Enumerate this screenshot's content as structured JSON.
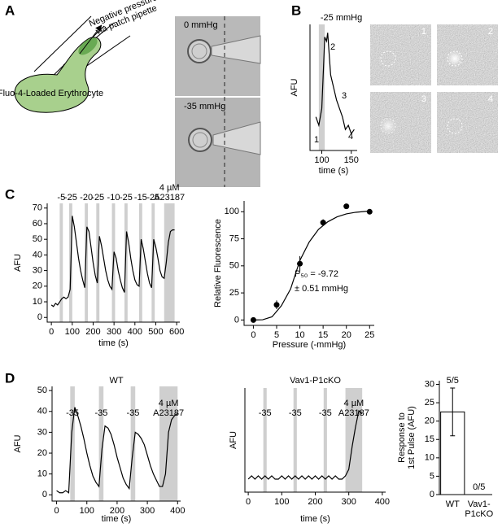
{
  "panels": [
    "A",
    "B",
    "C",
    "D"
  ],
  "diagram": {
    "pipette_label": [
      "Negative pressure",
      "via patch pipette"
    ],
    "cell_label": "Fluo-4-Loaded Erythrocyte",
    "image_labels": [
      "0 mmHg",
      "-35 mmHg"
    ]
  },
  "image_labels": [
    "1",
    "2",
    "3",
    "4"
  ],
  "chart_data": [
    {
      "type": "line",
      "ylabel": "AFU",
      "xlabel": "time (s)",
      "xlim": [
        80,
        160
      ],
      "ylim": [
        0,
        30
      ],
      "xticks": [
        100,
        150
      ],
      "color": "#000",
      "x": [
        90,
        95,
        100,
        103,
        105,
        108,
        110,
        113,
        115,
        120,
        125,
        130,
        135,
        140,
        145,
        150,
        155
      ],
      "values": [
        8,
        6,
        10,
        20,
        27,
        26,
        28,
        22,
        18,
        15,
        12,
        10,
        8,
        5,
        6,
        4,
        5
      ],
      "bands": [
        [
          95,
          105
        ]
      ],
      "band_labels": [
        "-25 mmHg"
      ],
      "annotations": [
        "1",
        "2",
        "3",
        "4"
      ]
    },
    {
      "type": "line",
      "ylabel": "AFU",
      "xlabel": "time (s)",
      "xlim": [
        -20,
        615
      ],
      "ylim": [
        -3,
        73
      ],
      "xticks": [
        0,
        100,
        200,
        300,
        400,
        500,
        600
      ],
      "yticks": [
        0,
        10,
        20,
        30,
        40,
        50,
        60,
        70
      ],
      "color": "#000",
      "x": [
        0,
        10,
        20,
        30,
        40,
        50,
        60,
        70,
        80,
        90,
        100,
        110,
        120,
        130,
        140,
        150,
        160,
        170,
        180,
        190,
        200,
        210,
        220,
        230,
        240,
        250,
        260,
        270,
        280,
        290,
        300,
        310,
        320,
        330,
        340,
        350,
        360,
        370,
        380,
        390,
        400,
        410,
        420,
        430,
        440,
        450,
        460,
        470,
        480,
        490,
        500,
        510,
        520,
        530,
        540,
        550,
        560,
        570,
        580,
        590
      ],
      "values": [
        8,
        7,
        9,
        8,
        10,
        12,
        13,
        12,
        13,
        18,
        65,
        58,
        48,
        38,
        30,
        24,
        19,
        58,
        55,
        45,
        35,
        27,
        22,
        52,
        46,
        38,
        30,
        24,
        20,
        18,
        42,
        38,
        30,
        24,
        19,
        16,
        55,
        48,
        38,
        30,
        24,
        21,
        20,
        50,
        44,
        36,
        28,
        22,
        19,
        50,
        45,
        38,
        30,
        26,
        25,
        35,
        48,
        55,
        56,
        56
      ],
      "bands": [
        [
          40,
          55
        ],
        [
          85,
          100
        ],
        [
          160,
          175
        ],
        [
          215,
          230
        ],
        [
          290,
          305
        ],
        [
          350,
          365
        ],
        [
          420,
          435
        ],
        [
          480,
          495
        ],
        [
          540,
          590
        ]
      ],
      "band_labels": [
        "-5",
        "-25",
        "-20",
        "-25",
        "-10",
        "-25",
        "-15",
        "-25",
        [
          "4 µM",
          "A23187"
        ]
      ]
    },
    {
      "type": "scatter",
      "ylabel": "Relative Fluorescence",
      "xlabel": "Pressure (-mmHg)",
      "xlim": [
        -2,
        26
      ],
      "ylim": [
        -5,
        110
      ],
      "xticks": [
        0,
        5,
        10,
        15,
        20,
        25
      ],
      "yticks": [
        0,
        25,
        50,
        75,
        100
      ],
      "color": "#000",
      "x": [
        0,
        5,
        10,
        15,
        20,
        25
      ],
      "values": [
        0,
        14,
        52,
        90,
        105,
        100
      ],
      "errors": [
        1,
        4,
        7,
        3,
        1,
        1
      ],
      "fit": {
        "x": [
          0,
          2,
          4,
          6,
          8,
          10,
          12,
          14,
          16,
          18,
          20,
          22,
          25
        ],
        "values": [
          0,
          0.2,
          2.9,
          13,
          28.6,
          55,
          72,
          83.7,
          90.7,
          95.3,
          98,
          99.5,
          100.7
        ]
      },
      "annotations": [
        "P₅₀ = -9.72",
        "± 0.51 mmHg"
      ]
    },
    {
      "type": "line",
      "title": "WT",
      "ylabel": "AFU",
      "xlabel": "time (s)",
      "xlim": [
        -15,
        410
      ],
      "ylim": [
        -3,
        52
      ],
      "xticks": [
        0,
        100,
        200,
        300,
        400
      ],
      "yticks": [
        0,
        10,
        20,
        30,
        40,
        50
      ],
      "color": "#000",
      "x": [
        0,
        10,
        20,
        30,
        40,
        50,
        60,
        70,
        80,
        90,
        100,
        110,
        120,
        130,
        140,
        150,
        160,
        170,
        180,
        190,
        200,
        210,
        220,
        230,
        240,
        250,
        260,
        270,
        280,
        290,
        300,
        310,
        320,
        330,
        340,
        350,
        360,
        370,
        380,
        390,
        400
      ],
      "values": [
        2,
        1,
        1,
        2,
        1,
        30,
        42,
        38,
        33,
        27,
        20,
        14,
        9,
        6,
        4,
        22,
        33,
        32,
        29,
        24,
        18,
        13,
        8,
        5,
        3,
        18,
        30,
        29,
        27,
        24,
        19,
        14,
        10,
        7,
        4,
        4,
        10,
        30,
        36,
        38,
        39
      ],
      "bands": [
        [
          45,
          60
        ],
        [
          140,
          155
        ],
        [
          245,
          260
        ],
        [
          340,
          400
        ]
      ],
      "band_labels": [
        "-35",
        "-35",
        "-35",
        [
          "4 µM",
          "A23187"
        ]
      ]
    },
    {
      "type": "line",
      "title": "Vav1-P1cKO",
      "ylabel": "AFU",
      "xlabel": "time (s)",
      "xlim": [
        -10,
        410
      ],
      "ylim": [
        -2,
        30
      ],
      "xticks": [
        0,
        100,
        200,
        300,
        400
      ],
      "color": "#000",
      "x": [
        0,
        10,
        20,
        30,
        40,
        50,
        60,
        70,
        80,
        90,
        100,
        110,
        120,
        130,
        140,
        150,
        160,
        170,
        180,
        190,
        200,
        210,
        220,
        230,
        240,
        250,
        260,
        270,
        280,
        290,
        300,
        310,
        320,
        330,
        340
      ],
      "values": [
        2,
        3,
        2,
        3,
        2,
        3,
        2,
        3,
        2,
        2,
        3,
        2,
        3,
        2,
        3,
        2,
        3,
        2,
        3,
        2,
        3,
        2,
        3,
        2,
        3,
        2,
        3,
        2,
        2,
        3,
        5,
        12,
        18,
        23,
        22
      ],
      "bands": [
        [
          45,
          55
        ],
        [
          135,
          145
        ],
        [
          225,
          235
        ],
        [
          290,
          340
        ]
      ],
      "band_labels": [
        "-35",
        "-35",
        "-35",
        [
          "4 µM",
          "A23187"
        ]
      ]
    },
    {
      "type": "bar",
      "ylabel": [
        "Response to",
        "1st Pulse (AFU)"
      ],
      "ylim": [
        0,
        31
      ],
      "yticks": [
        0,
        5,
        10,
        15,
        20,
        25,
        30
      ],
      "color": "#fff",
      "categories": [
        "WT",
        [
          "Vav1-",
          "P1cKO"
        ]
      ],
      "values": [
        22.5,
        0
      ],
      "errors": [
        6.5,
        0
      ],
      "annotations": [
        "5/5",
        "0/5"
      ]
    }
  ]
}
